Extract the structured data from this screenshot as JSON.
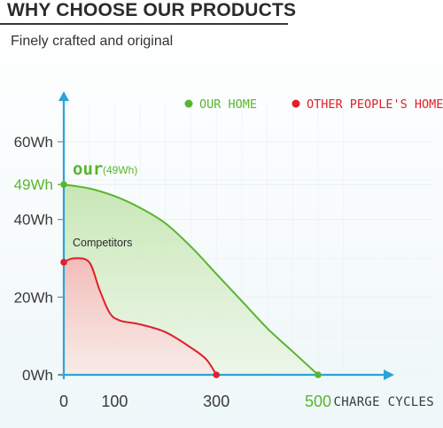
{
  "header": {
    "title": "WHY CHOOSE OUR PRODUCTS",
    "subtitle": "Finely crafted and original"
  },
  "colors": {
    "ours": "#5ab52e",
    "others": "#e0202a",
    "axis": "#2aa4d8",
    "axis_label": "#3a3a3a"
  },
  "chart_data": {
    "type": "area",
    "xlabel": "CHARGE CYCLES",
    "ylabel": "",
    "xlim": [
      0,
      550
    ],
    "ylim": [
      0,
      70
    ],
    "x_ticks": [
      {
        "value": 0,
        "label": "0"
      },
      {
        "value": 100,
        "label": "100"
      },
      {
        "value": 300,
        "label": "300"
      },
      {
        "value": 500,
        "label": "500"
      }
    ],
    "y_ticks": [
      {
        "value": 0,
        "label": "0Wh"
      },
      {
        "value": 20,
        "label": "20Wh"
      },
      {
        "value": 40,
        "label": "40Wh"
      },
      {
        "value": 49,
        "label": "49Wh"
      },
      {
        "value": 60,
        "label": "60Wh"
      }
    ],
    "grid": true,
    "legend_placement": "top-right",
    "series": [
      {
        "name": "OUR HOME",
        "points": [
          [
            0,
            49
          ],
          [
            50,
            48
          ],
          [
            100,
            46
          ],
          [
            150,
            43
          ],
          [
            200,
            39
          ],
          [
            250,
            33
          ],
          [
            300,
            26
          ],
          [
            350,
            19
          ],
          [
            400,
            12
          ],
          [
            450,
            6
          ],
          [
            500,
            0
          ]
        ]
      },
      {
        "name": "OTHER PEOPLE'S HOME",
        "points": [
          [
            0,
            29
          ],
          [
            20,
            30
          ],
          [
            50,
            29
          ],
          [
            70,
            22
          ],
          [
            90,
            16
          ],
          [
            110,
            14
          ],
          [
            150,
            13
          ],
          [
            200,
            11
          ],
          [
            250,
            7
          ],
          [
            280,
            4
          ],
          [
            300,
            0
          ]
        ]
      }
    ],
    "annotations": [
      {
        "text": "our",
        "series": 0
      },
      {
        "text": "(49Wh)",
        "series": 0
      },
      {
        "text": "Competitors",
        "series": 1
      }
    ]
  }
}
